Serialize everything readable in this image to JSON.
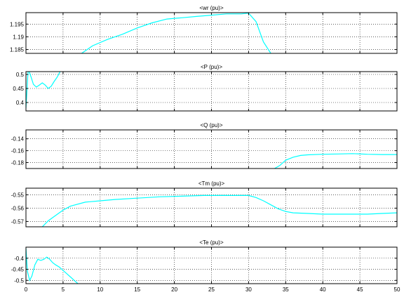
{
  "figure": {
    "background": "#ffffff",
    "axes_color": "#000000",
    "grid_color": "#000000",
    "line_color": "#00ffff"
  },
  "chart_data": [
    {
      "type": "line",
      "title": "<wr (pu)>",
      "xlim": [
        0,
        50
      ],
      "ylim": [
        1.1835,
        1.1995
      ],
      "yticks": [
        "1.185",
        "1.19",
        "1.195"
      ],
      "ytick_values": [
        1.185,
        1.19,
        1.195
      ],
      "xticks": [
        0,
        5,
        10,
        15,
        20,
        25,
        30,
        35,
        40,
        45,
        50
      ],
      "show_xtick_labels": false,
      "grid": true,
      "series": [
        {
          "x": [
            7.5,
            9,
            11,
            13,
            15,
            17,
            19,
            21,
            23,
            25,
            27,
            29,
            30,
            31,
            32,
            33
          ],
          "y": [
            1.1835,
            1.1865,
            1.189,
            1.191,
            1.1935,
            1.1955,
            1.197,
            1.1975,
            1.198,
            1.1985,
            1.199,
            1.199,
            1.1993,
            1.196,
            1.188,
            1.1835
          ]
        }
      ]
    },
    {
      "type": "line",
      "title": "<P (pu)>",
      "xlim": [
        0,
        50
      ],
      "ylim": [
        0.37,
        0.51
      ],
      "yticks": [
        "0.4",
        "0.45",
        "0.5"
      ],
      "ytick_values": [
        0.4,
        0.45,
        0.5
      ],
      "xticks": [
        0,
        5,
        10,
        15,
        20,
        25,
        30,
        35,
        40,
        45,
        50
      ],
      "show_xtick_labels": false,
      "grid": true,
      "series": [
        {
          "x": [
            0,
            0.3,
            0.7,
            1.0,
            1.4,
            1.8,
            2.2,
            2.6,
            3.0,
            3.4,
            3.8,
            4.2,
            4.6
          ],
          "y": [
            0.38,
            0.52,
            0.49,
            0.465,
            0.455,
            0.462,
            0.47,
            0.462,
            0.45,
            0.458,
            0.475,
            0.49,
            0.51
          ]
        }
      ]
    },
    {
      "type": "line",
      "title": "<Q (pu)>",
      "xlim": [
        0,
        50
      ],
      "ylim": [
        -0.19,
        -0.125
      ],
      "yticks": [
        "-0.14",
        "-0.16",
        "-0.18"
      ],
      "ytick_values": [
        -0.14,
        -0.16,
        -0.18
      ],
      "xticks": [
        0,
        5,
        10,
        15,
        20,
        25,
        30,
        35,
        40,
        45,
        50
      ],
      "show_xtick_labels": false,
      "grid": true,
      "series": [
        {
          "x": [
            33.5,
            34.2,
            35,
            36,
            37,
            38,
            40,
            42,
            44,
            46,
            48,
            50
          ],
          "y": [
            -0.19,
            -0.185,
            -0.176,
            -0.171,
            -0.168,
            -0.167,
            -0.166,
            -0.1655,
            -0.165,
            -0.166,
            -0.1665,
            -0.1665
          ]
        }
      ]
    },
    {
      "type": "line",
      "title": "<Tm (pu)>",
      "xlim": [
        0,
        50
      ],
      "ylim": [
        -0.574,
        -0.545
      ],
      "yticks": [
        "-0.55",
        "-0.56",
        "-0.57"
      ],
      "ytick_values": [
        -0.55,
        -0.56,
        -0.57
      ],
      "xticks": [
        0,
        5,
        10,
        15,
        20,
        25,
        30,
        35,
        40,
        45,
        50
      ],
      "show_xtick_labels": false,
      "grid": true,
      "series": [
        {
          "x": [
            2.2,
            3,
            4,
            5,
            6,
            8,
            10,
            12,
            15,
            18,
            21,
            24,
            27,
            30,
            31,
            32,
            33,
            34,
            35,
            36,
            38,
            40,
            42,
            44,
            46,
            48,
            50
          ],
          "y": [
            -0.574,
            -0.5695,
            -0.5655,
            -0.5615,
            -0.5585,
            -0.5555,
            -0.5545,
            -0.5535,
            -0.5525,
            -0.5515,
            -0.551,
            -0.5505,
            -0.5505,
            -0.5505,
            -0.552,
            -0.5545,
            -0.5575,
            -0.5605,
            -0.5625,
            -0.5635,
            -0.564,
            -0.5645,
            -0.5645,
            -0.5645,
            -0.5645,
            -0.564,
            -0.5635
          ]
        }
      ]
    },
    {
      "type": "line",
      "title": "<Te (pu)>",
      "xlim": [
        0,
        50
      ],
      "ylim": [
        -0.515,
        -0.35
      ],
      "yticks": [
        "-0.4",
        "-0.45",
        "-0.5"
      ],
      "ytick_values": [
        -0.4,
        -0.45,
        -0.5
      ],
      "xticks": [
        0,
        5,
        10,
        15,
        20,
        25,
        30,
        35,
        40,
        45,
        50
      ],
      "xtick_labels": [
        "0",
        "5",
        "10",
        "15",
        "20",
        "25",
        "30",
        "35",
        "40",
        "45",
        "50"
      ],
      "show_xtick_labels": true,
      "grid": true,
      "series": [
        {
          "x": [
            0,
            0.2,
            0.5,
            0.8,
            1.2,
            1.6,
            2.0,
            2.4,
            2.8,
            3.2,
            3.6,
            4.0,
            4.5,
            5.0,
            5.5,
            6.0,
            6.5,
            7.0
          ],
          "y": [
            -0.355,
            -0.46,
            -0.5,
            -0.48,
            -0.43,
            -0.405,
            -0.41,
            -0.405,
            -0.395,
            -0.405,
            -0.42,
            -0.43,
            -0.44,
            -0.455,
            -0.47,
            -0.485,
            -0.5,
            -0.515
          ]
        }
      ]
    }
  ]
}
